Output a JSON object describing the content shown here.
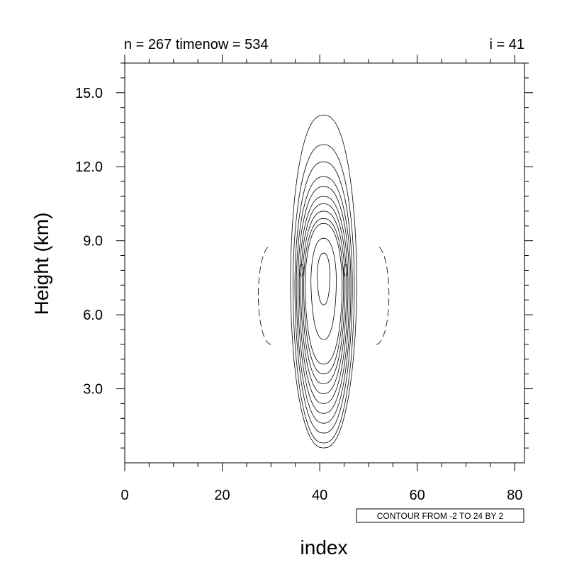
{
  "chart_data": {
    "type": "contour",
    "title_left": "n = 267 timenow = 534",
    "title_right": "i = 41",
    "xlabel": "index",
    "ylabel": "Height (km)",
    "xlim": [
      0,
      82
    ],
    "ylim": [
      0,
      16.2
    ],
    "xticks": [
      0,
      20,
      40,
      60,
      80
    ],
    "xtick_labels": [
      "0",
      "20",
      "40",
      "60",
      "80"
    ],
    "yticks": [
      3.0,
      6.0,
      9.0,
      12.0,
      15.0
    ],
    "ytick_labels": [
      "3.0",
      "6.0",
      "9.0",
      "12.0",
      "15.0"
    ],
    "contour_info": "CONTOUR FROM -2 TO 24 BY 2",
    "grid": false,
    "contours": [
      {
        "level": 2,
        "cx": 40.8,
        "cy": 7.3,
        "rx": 6.8,
        "ry_top": 6.8,
        "ry_bot": 6.7,
        "style": "solid"
      },
      {
        "level": 4,
        "cx": 40.8,
        "cy": 7.2,
        "rx": 6.3,
        "ry_top": 5.7,
        "ry_bot": 6.4,
        "style": "solid"
      },
      {
        "level": 6,
        "cx": 40.8,
        "cy": 7.2,
        "rx": 5.9,
        "ry_top": 5.0,
        "ry_bot": 6.0,
        "style": "solid"
      },
      {
        "level": 8,
        "cx": 40.8,
        "cy": 7.2,
        "rx": 5.6,
        "ry_top": 4.4,
        "ry_bot": 5.6,
        "style": "solid"
      },
      {
        "level": 10,
        "cx": 40.8,
        "cy": 7.2,
        "rx": 5.3,
        "ry_top": 4.0,
        "ry_bot": 5.2,
        "style": "solid"
      },
      {
        "level": 12,
        "cx": 40.8,
        "cy": 7.2,
        "rx": 5.0,
        "ry_top": 3.6,
        "ry_bot": 4.8,
        "style": "solid"
      },
      {
        "level": 14,
        "cx": 40.8,
        "cy": 7.2,
        "rx": 4.7,
        "ry_top": 3.3,
        "ry_bot": 4.4,
        "style": "solid"
      },
      {
        "level": 16,
        "cx": 40.8,
        "cy": 7.2,
        "rx": 4.4,
        "ry_top": 3.0,
        "ry_bot": 4.0,
        "style": "solid"
      },
      {
        "level": 18,
        "cx": 40.8,
        "cy": 7.2,
        "rx": 4.1,
        "ry_top": 2.7,
        "ry_bot": 3.6,
        "style": "solid"
      },
      {
        "level": 20,
        "cx": 40.8,
        "cy": 7.2,
        "rx": 3.8,
        "ry_top": 2.5,
        "ry_bot": 3.2,
        "style": "solid"
      },
      {
        "level": 22,
        "cx": 40.8,
        "cy": 7.4,
        "rx": 2.6,
        "ry_top": 1.7,
        "ry_bot": 2.4,
        "style": "solid"
      },
      {
        "level": 24,
        "cx": 40.8,
        "cy": 7.6,
        "rx": 1.3,
        "ry_top": 0.9,
        "ry_bot": 1.2,
        "style": "solid"
      },
      {
        "level": -2,
        "cx": 30.0,
        "cy": 6.8,
        "rx": 2.6,
        "ry_top": 2.0,
        "ry_bot": 2.0,
        "style": "dashed",
        "side": "left"
      },
      {
        "level": -2,
        "cx": 51.6,
        "cy": 6.8,
        "rx": 2.6,
        "ry_top": 2.0,
        "ry_bot": 2.0,
        "style": "dashed",
        "side": "right"
      }
    ]
  }
}
